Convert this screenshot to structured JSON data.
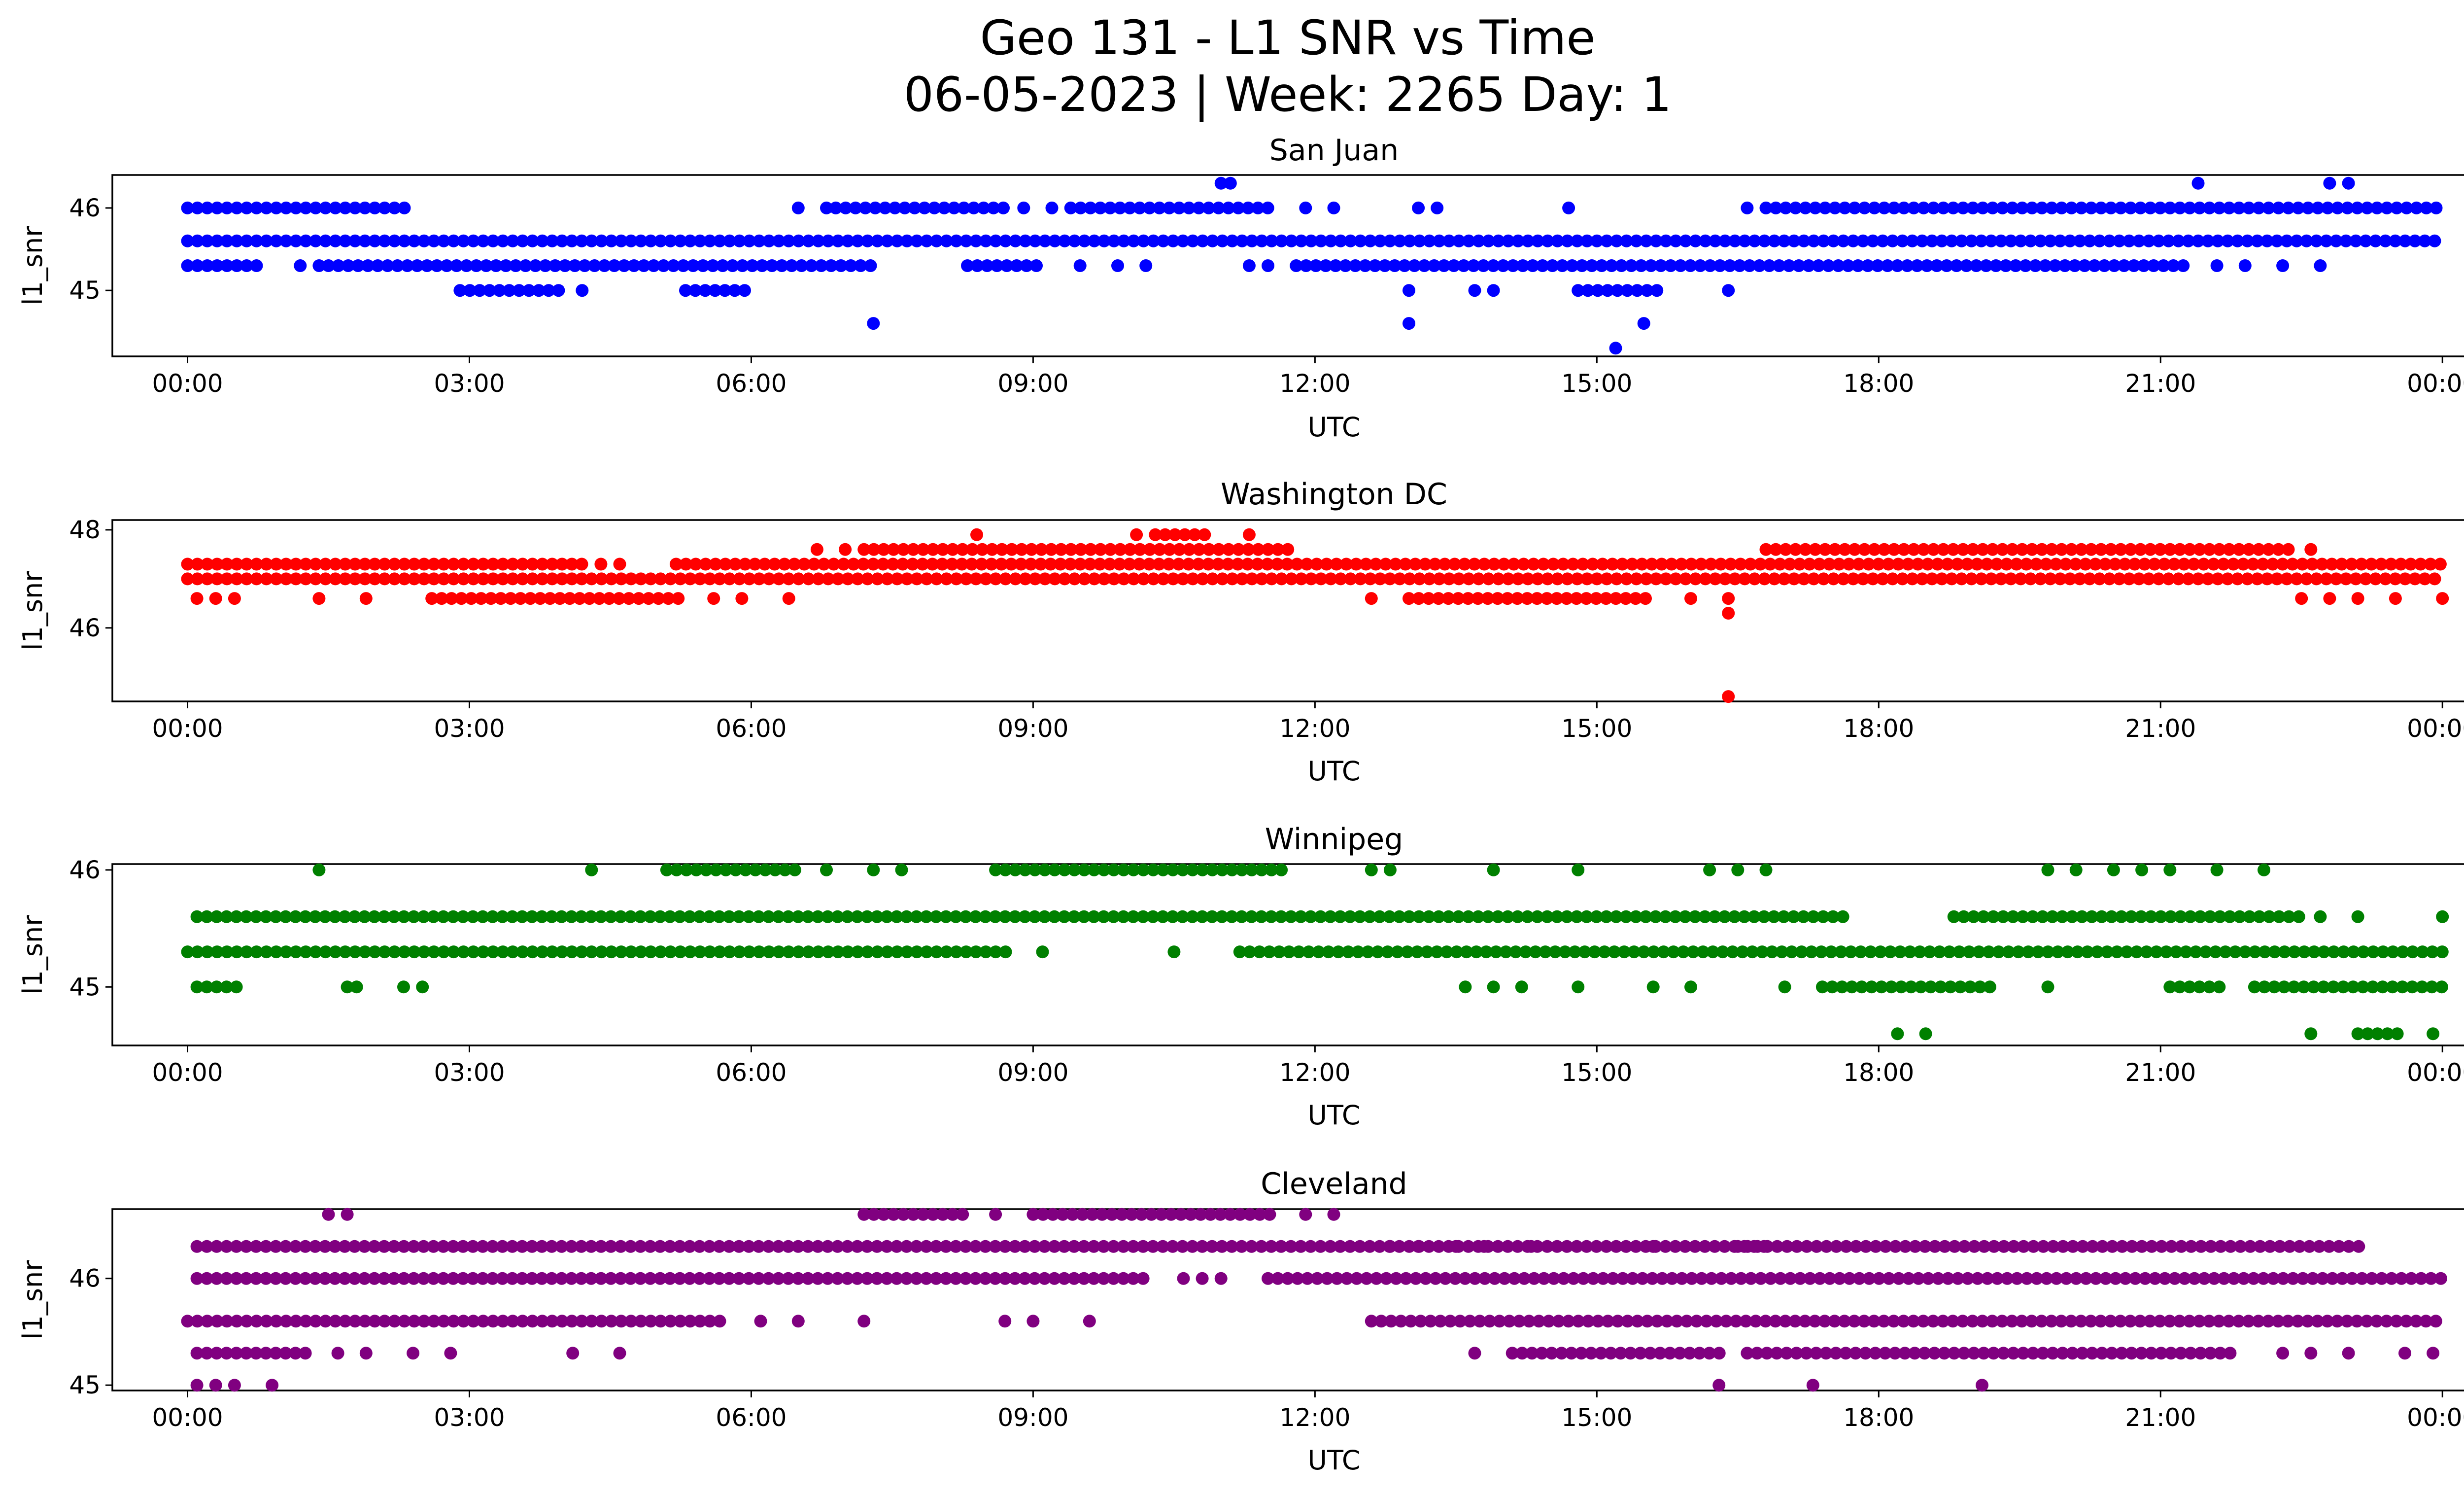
{
  "figure": {
    "title_line1": "Geo 131 - L1 SNR vs Time",
    "title_line2": "06-05-2023 | Week: 2265 Day: 1"
  },
  "chart_data": [
    {
      "type": "scatter",
      "title": "San Juan",
      "xlabel": "UTC",
      "ylabel": "l1_snr",
      "color": "#0000ff",
      "xlim": [
        -0.8,
        25.2
      ],
      "ylim": [
        44.2,
        46.4
      ],
      "x_ticks": [
        "00:00",
        "03:00",
        "06:00",
        "09:00",
        "12:00",
        "15:00",
        "18:00",
        "21:00",
        "00:00"
      ],
      "y_ticks": [
        45,
        46
      ],
      "bands": [
        {
          "y": 46.0,
          "segments": [
            [
              0.0,
              2.35
            ],
            [
              6.9,
              8.7
            ],
            [
              9.4,
              11.6
            ],
            [
              16.8,
              24.0
            ]
          ],
          "sparse": [
            6.5,
            6.8,
            8.9,
            9.2,
            11.9,
            12.2,
            13.1,
            13.3,
            14.7,
            16.6
          ]
        },
        {
          "y": 45.6,
          "segments": [
            [
              0.0,
              24.0
            ]
          ],
          "sparse": []
        },
        {
          "y": 45.3,
          "segments": [
            [
              0.0,
              0.8
            ],
            [
              1.5,
              7.3
            ],
            [
              8.3,
              9.1
            ],
            [
              11.8,
              21.3
            ]
          ],
          "sparse": [
            1.2,
            1.4,
            9.5,
            9.9,
            10.2,
            11.3,
            11.5,
            21.6,
            21.9,
            22.3,
            22.7
          ]
        },
        {
          "y": 45.0,
          "segments": [
            [
              2.9,
              4.0
            ],
            [
              5.3,
              6.0
            ],
            [
              14.8,
              15.7
            ]
          ],
          "sparse": [
            4.2,
            13.0,
            13.7,
            13.9,
            16.4
          ]
        },
        {
          "y": 44.6,
          "segments": [],
          "sparse": [
            7.3,
            13.0,
            15.5
          ]
        },
        {
          "y": 44.3,
          "segments": [],
          "sparse": [
            15.2
          ]
        },
        {
          "y": 46.3,
          "segments": [],
          "sparse": [
            11.0,
            11.1,
            21.4,
            22.8,
            23.0
          ]
        }
      ]
    },
    {
      "type": "scatter",
      "title": "Washington DC",
      "xlabel": "UTC",
      "ylabel": "l1_snr",
      "color": "#ff0000",
      "xlim": [
        -0.8,
        25.2
      ],
      "ylim": [
        44.5,
        48.2
      ],
      "x_ticks": [
        "00:00",
        "03:00",
        "06:00",
        "09:00",
        "12:00",
        "15:00",
        "18:00",
        "21:00",
        "00:00"
      ],
      "y_ticks": [
        46,
        48
      ],
      "bands": [
        {
          "y": 47.6,
          "segments": [
            [
              7.2,
              11.8
            ],
            [
              16.8,
              22.4
            ]
          ],
          "sparse": [
            6.7,
            7.0,
            22.6
          ]
        },
        {
          "y": 47.3,
          "segments": [
            [
              0.0,
              4.2
            ],
            [
              5.2,
              24.0
            ]
          ],
          "sparse": [
            4.4,
            4.6
          ]
        },
        {
          "y": 47.0,
          "segments": [
            [
              0.0,
              24.0
            ]
          ],
          "sparse": []
        },
        {
          "y": 46.6,
          "segments": [
            [
              2.6,
              5.3
            ],
            [
              13.0,
              15.6
            ]
          ],
          "sparse": [
            0.1,
            0.3,
            0.5,
            1.4,
            1.9,
            5.6,
            5.9,
            6.4,
            12.6,
            16.0,
            16.4,
            22.5,
            22.8,
            23.1,
            23.5,
            24.0
          ]
        },
        {
          "y": 46.3,
          "segments": [],
          "sparse": [
            16.4
          ]
        },
        {
          "y": 47.9,
          "segments": [
            [
              10.3,
              10.9
            ]
          ],
          "sparse": [
            8.4,
            10.1,
            11.3
          ]
        },
        {
          "y": 44.6,
          "segments": [],
          "sparse": [
            16.4
          ]
        }
      ]
    },
    {
      "type": "scatter",
      "title": "Winnipeg",
      "xlabel": "UTC",
      "ylabel": "l1_snr",
      "color": "#008000",
      "xlim": [
        -0.8,
        25.2
      ],
      "ylim": [
        44.5,
        46.05
      ],
      "x_ticks": [
        "00:00",
        "03:00",
        "06:00",
        "09:00",
        "12:00",
        "15:00",
        "18:00",
        "21:00",
        "00:00"
      ],
      "y_ticks": [
        45,
        46
      ],
      "bands": [
        {
          "y": 46.0,
          "segments": [
            [
              5.1,
              6.5
            ],
            [
              8.6,
              11.7
            ]
          ],
          "sparse": [
            1.4,
            4.3,
            6.8,
            7.3,
            7.6,
            12.6,
            12.8,
            13.9,
            14.8,
            16.2,
            16.5,
            16.8,
            19.8,
            20.1,
            20.5,
            20.8,
            21.1,
            21.6,
            22.1
          ]
        },
        {
          "y": 45.6,
          "segments": [
            [
              0.1,
              17.7
            ],
            [
              18.8,
              22.5
            ]
          ],
          "sparse": [
            22.7,
            23.1,
            24.0
          ]
        },
        {
          "y": 45.3,
          "segments": [
            [
              0.0,
              8.8
            ],
            [
              11.2,
              24.0
            ]
          ],
          "sparse": [
            9.1,
            10.5
          ]
        },
        {
          "y": 45.0,
          "segments": [
            [
              0.1,
              0.6
            ],
            [
              17.4,
              19.2
            ],
            [
              21.1,
              21.7
            ],
            [
              22.0,
              24.0
            ]
          ],
          "sparse": [
            1.7,
            1.8,
            2.3,
            2.5,
            13.6,
            13.9,
            14.2,
            14.8,
            15.6,
            16.0,
            17.0,
            19.8
          ]
        },
        {
          "y": 44.6,
          "segments": [
            [
              23.1,
              23.6
            ]
          ],
          "sparse": [
            18.2,
            18.5,
            22.6,
            23.9
          ]
        }
      ]
    },
    {
      "type": "scatter",
      "title": "Cleveland",
      "xlabel": "UTC",
      "ylabel": "l1_snr",
      "color": "#800080",
      "xlim": [
        -0.8,
        25.2
      ],
      "ylim": [
        44.95,
        46.65
      ],
      "x_ticks": [
        "00:00",
        "03:00",
        "06:00",
        "09:00",
        "12:00",
        "15:00",
        "18:00",
        "21:00",
        "00:00"
      ],
      "y_ticks": [
        45,
        46
      ],
      "bands": [
        {
          "y": 46.6,
          "segments": [
            [
              7.2,
              8.3
            ],
            [
              9.0,
              11.6
            ]
          ],
          "sparse": [
            1.5,
            1.7,
            8.6,
            11.9,
            12.2
          ]
        },
        {
          "y": 46.3,
          "segments": [
            [
              0.1,
              16.8
            ],
            [
              16.5,
              23.2
            ]
          ],
          "sparse": [
            12.8,
            13.1,
            13.5,
            13.8,
            14.3,
            15.6
          ]
        },
        {
          "y": 46.0,
          "segments": [
            [
              0.1,
              10.2
            ],
            [
              11.5,
              24.0
            ]
          ],
          "sparse": [
            10.6,
            10.8,
            11.0
          ]
        },
        {
          "y": 45.6,
          "segments": [
            [
              0.0,
              5.7
            ],
            [
              12.6,
              24.0
            ]
          ],
          "sparse": [
            6.1,
            6.5,
            7.2,
            8.7,
            9.0,
            9.6
          ]
        },
        {
          "y": 45.3,
          "segments": [
            [
              0.1,
              1.3
            ],
            [
              14.1,
              16.4
            ],
            [
              16.6,
              21.8
            ]
          ],
          "sparse": [
            1.6,
            1.9,
            2.4,
            2.8,
            4.1,
            4.6,
            13.7,
            22.3,
            22.6,
            23.0,
            23.6,
            23.9
          ]
        },
        {
          "y": 45.0,
          "segments": [],
          "sparse": [
            0.1,
            0.3,
            0.5,
            0.9,
            16.3,
            17.3,
            19.1
          ]
        }
      ]
    }
  ]
}
